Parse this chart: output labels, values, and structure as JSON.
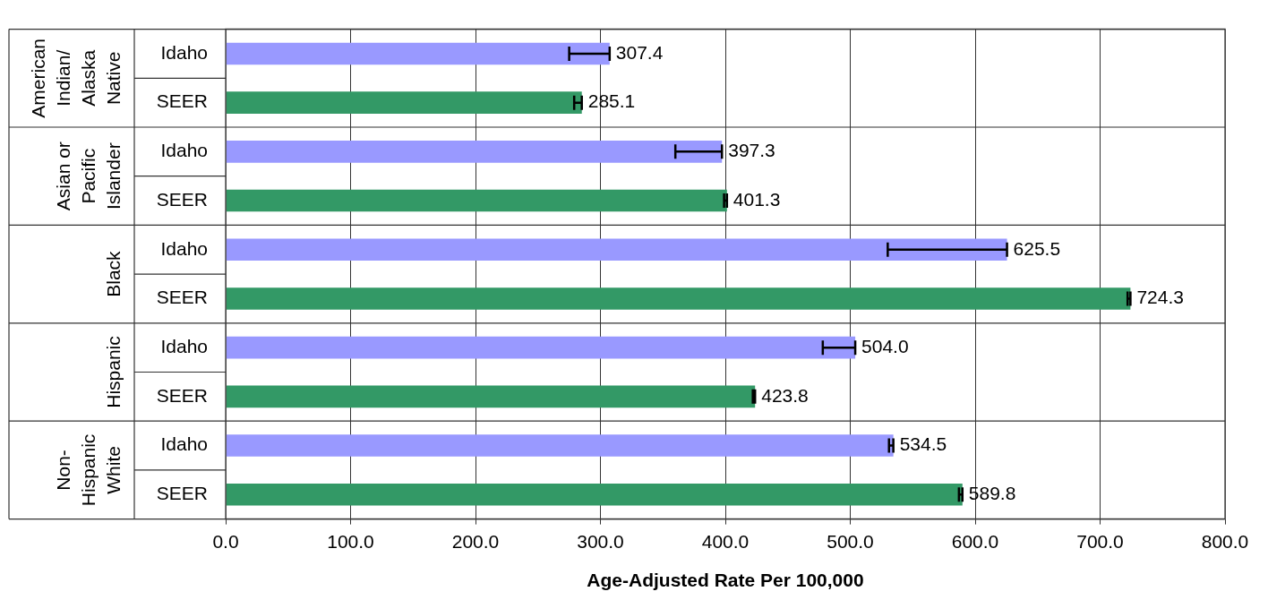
{
  "chart_data": {
    "type": "bar",
    "orientation": "horizontal",
    "xlabel": "Age-Adjusted Rate Per 100,000",
    "categories": [
      "Idaho",
      "SEER",
      "Idaho",
      "SEER",
      "Idaho",
      "SEER",
      "Idaho",
      "SEER",
      "Idaho",
      "SEER"
    ],
    "values": [
      307.4,
      285.1,
      397.3,
      401.3,
      625.5,
      724.3,
      504.0,
      423.8,
      534.5,
      589.8
    ],
    "colors": [
      "#9999ff",
      "#339966",
      "#9999ff",
      "#339966",
      "#9999ff",
      "#339966",
      "#9999ff",
      "#339966",
      "#9999ff",
      "#339966"
    ],
    "errors": [
      [
        275,
        307.4
      ],
      [
        279,
        285.1
      ],
      [
        360,
        397.3
      ],
      [
        399,
        401.3
      ],
      [
        530,
        625.5
      ],
      [
        722,
        724.3
      ],
      [
        478,
        504.0
      ],
      [
        422,
        423.8
      ],
      [
        531,
        534.5
      ],
      [
        587,
        589.8
      ]
    ],
    "value_labels": [
      "307.4",
      "285.1",
      "397.3",
      "401.3",
      "625.5",
      "724.3",
      "504.0",
      "423.8",
      "534.5",
      "589.8"
    ],
    "xlim": [
      0,
      800
    ],
    "xticks": [
      {
        "value": 0,
        "label": "0.0"
      },
      {
        "value": 100,
        "label": "100.0"
      },
      {
        "value": 200,
        "label": "200.0"
      },
      {
        "value": 300,
        "label": "300.0"
      },
      {
        "value": 400,
        "label": "400.0"
      },
      {
        "value": 500,
        "label": "500.0"
      },
      {
        "value": 600,
        "label": "600.0"
      },
      {
        "value": 700,
        "label": "700.0"
      },
      {
        "value": 800,
        "label": "800.0"
      }
    ],
    "annotations": [
      "American Indian/ Alaska Native",
      "Asian or Pacific Islander",
      "Black",
      "Hispanic",
      "Non- Hispanic White"
    ],
    "grid": "x",
    "legend": false
  }
}
